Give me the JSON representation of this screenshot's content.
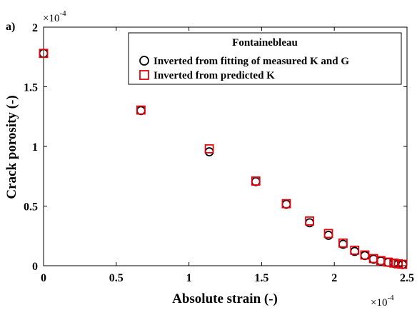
{
  "panel_label": "a)",
  "chart_data": {
    "type": "scatter",
    "xlabel": "Absolute strain (-)",
    "ylabel": "Crack porosity (-)",
    "x_exponent_label": "×10",
    "x_exponent_power": "-4",
    "y_exponent_label": "×10",
    "y_exponent_power": "-4",
    "xlim": [
      0,
      2.5
    ],
    "ylim": [
      0,
      2
    ],
    "x_ticks": [
      0,
      0.5,
      1,
      1.5,
      2,
      2.5
    ],
    "x_tick_labels": [
      "0",
      "0.5",
      "1",
      "1.5",
      "2",
      "2.5"
    ],
    "y_ticks": [
      0,
      0.5,
      1,
      1.5,
      2
    ],
    "y_tick_labels": [
      "0",
      "0.5",
      "1",
      "1.5",
      "2"
    ],
    "grid": false,
    "legend": {
      "title": "Fontainebleau",
      "placement": "top-right"
    },
    "series": [
      {
        "name": "Inverted from fitting of measured K and G",
        "marker": "circle",
        "color": "#000000",
        "points": [
          [
            0.0,
            1.78
          ],
          [
            0.67,
            1.3
          ],
          [
            1.14,
            0.955
          ],
          [
            1.46,
            0.705
          ],
          [
            1.67,
            0.515
          ],
          [
            1.83,
            0.36
          ],
          [
            1.96,
            0.255
          ],
          [
            2.06,
            0.18
          ],
          [
            2.14,
            0.12
          ],
          [
            2.21,
            0.085
          ],
          [
            2.27,
            0.055
          ],
          [
            2.32,
            0.04
          ],
          [
            2.37,
            0.028
          ],
          [
            2.41,
            0.02
          ],
          [
            2.44,
            0.015
          ],
          [
            2.47,
            0.01
          ]
        ]
      },
      {
        "name": "Inverted from predicted K",
        "marker": "square",
        "color": "#e8000b",
        "points": [
          [
            0.0,
            1.78
          ],
          [
            0.67,
            1.305
          ],
          [
            1.14,
            0.98
          ],
          [
            1.46,
            0.71
          ],
          [
            1.67,
            0.52
          ],
          [
            1.83,
            0.375
          ],
          [
            1.96,
            0.27
          ],
          [
            2.06,
            0.19
          ],
          [
            2.14,
            0.13
          ],
          [
            2.21,
            0.09
          ],
          [
            2.27,
            0.06
          ],
          [
            2.32,
            0.043
          ],
          [
            2.37,
            0.03
          ],
          [
            2.41,
            0.022
          ],
          [
            2.44,
            0.016
          ],
          [
            2.47,
            0.012
          ]
        ]
      }
    ]
  }
}
